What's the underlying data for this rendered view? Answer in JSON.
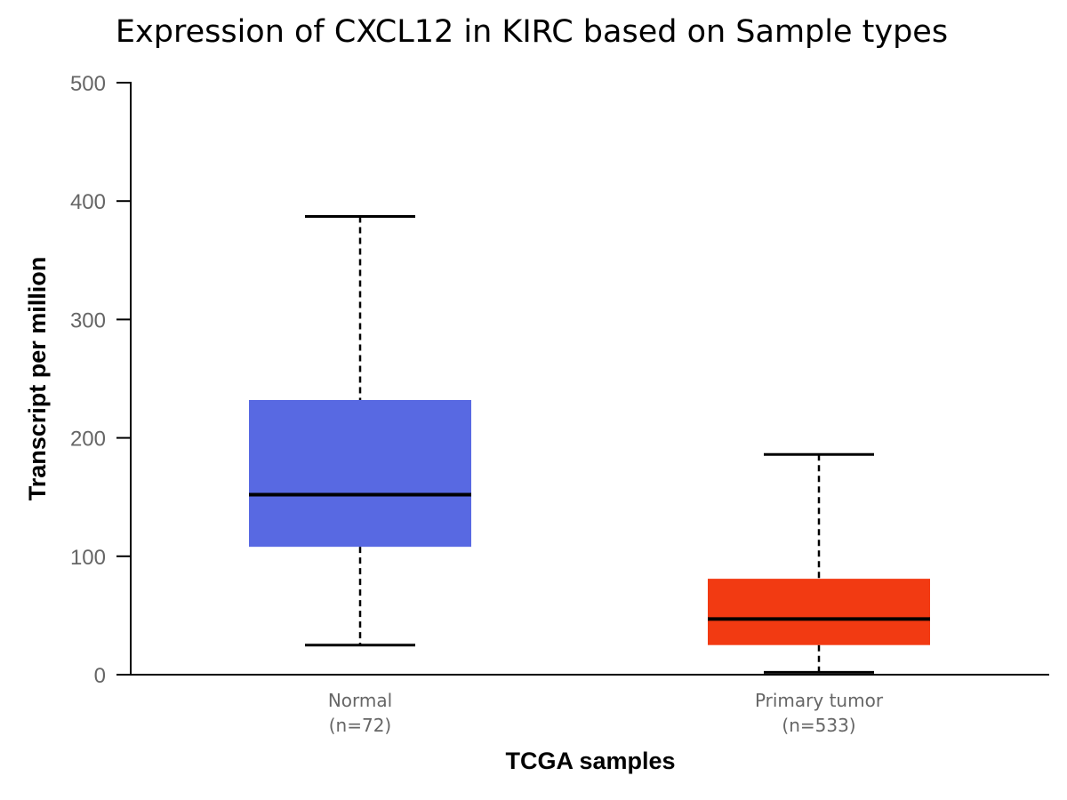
{
  "chart_data": {
    "type": "box",
    "title": "Expression of CXCL12 in KIRC based on Sample types",
    "xlabel": "TCGA samples",
    "ylabel": "Transcript per million",
    "ylim": [
      0,
      500
    ],
    "yticks": [
      "0",
      "100",
      "200",
      "300",
      "400",
      "500"
    ],
    "grid": false,
    "groups": [
      {
        "label": "Normal",
        "n_label": "(n=72)",
        "color": "#5869e2",
        "whisker_low": 25,
        "q1": 108,
        "median": 152,
        "q3": 232,
        "whisker_high": 387
      },
      {
        "label": "Primary tumor",
        "n_label": "(n=533)",
        "color": "#f23a12",
        "whisker_low": 2,
        "q1": 25,
        "median": 47,
        "q3": 81,
        "whisker_high": 186
      }
    ]
  }
}
